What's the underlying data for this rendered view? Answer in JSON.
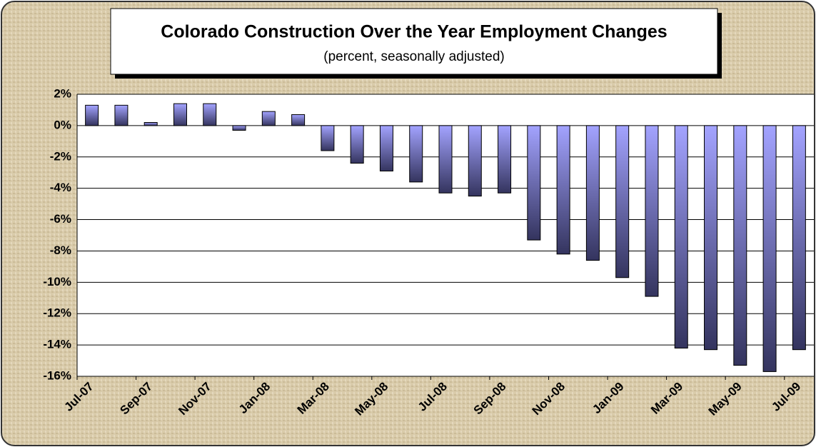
{
  "chart_data": {
    "type": "bar",
    "title": "Colorado Construction Over the Year Employment Changes",
    "subtitle": "(percent, seasonally adjusted)",
    "categories": [
      "Jul-07",
      null,
      "Sep-07",
      null,
      "Nov-07",
      null,
      "Jan-08",
      null,
      "Mar-08",
      null,
      "May-08",
      null,
      "Jul-08",
      null,
      "Sep-08",
      null,
      "Nov-08",
      null,
      "Jan-09",
      null,
      "Mar-09",
      null,
      "May-09",
      null,
      "Jul-09"
    ],
    "values": [
      1.3,
      1.3,
      0.2,
      1.4,
      1.4,
      -0.3,
      0.9,
      0.7,
      -1.6,
      -2.4,
      -2.9,
      -3.6,
      -4.3,
      -4.5,
      -4.3,
      -7.3,
      -8.2,
      -8.6,
      -9.7,
      -10.9,
      -14.2,
      -14.3,
      -15.3,
      -15.7,
      -14.3
    ],
    "color": "#9999ff",
    "ylim": [
      -16,
      2
    ],
    "yticks": [
      {
        "value": -16,
        "label": "-16%"
      },
      {
        "value": -14,
        "label": "-14%"
      },
      {
        "value": -12,
        "label": "-12%"
      },
      {
        "value": -10,
        "label": "-10%"
      },
      {
        "value": -8,
        "label": "-8%"
      },
      {
        "value": -6,
        "label": "-6%"
      },
      {
        "value": -4,
        "label": "-4%"
      },
      {
        "value": -2,
        "label": "-2%"
      },
      {
        "value": 0,
        "label": "0%"
      },
      {
        "value": 2,
        "label": "2%"
      }
    ],
    "grid": true
  }
}
